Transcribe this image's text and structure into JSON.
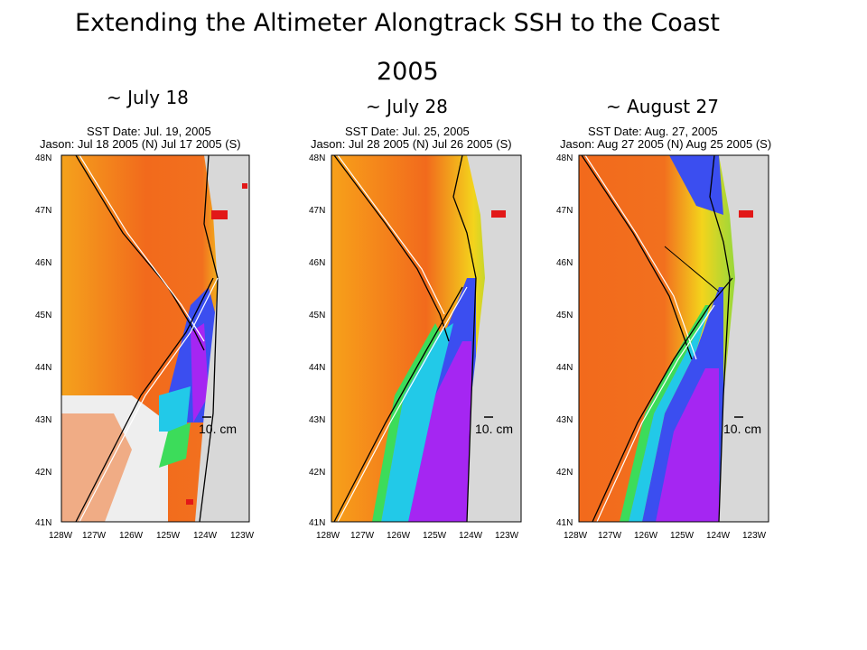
{
  "title": "Extending the Altimeter Alongtrack SSH to the Coast",
  "year": "2005",
  "panels": [
    {
      "label": "~ July 18",
      "sst_date": "SST Date: Jul. 19, 2005",
      "jason": "Jason: Jul 18 2005 (N) Jul 17 2005 (S)",
      "scale_label": "10. cm"
    },
    {
      "label": "~ July 28",
      "sst_date": "SST Date: Jul. 25, 2005",
      "jason": "Jason: Jul 28 2005 (N) Jul 26 2005 (S)",
      "scale_label": "10. cm"
    },
    {
      "label": "~ August 27",
      "sst_date": "SST Date: Aug. 27, 2005",
      "jason": "Jason: Aug 27 2005 (N) Aug 25 2005 (S)",
      "scale_label": "10. cm"
    }
  ],
  "lat_ticks": [
    "48N",
    "47N",
    "46N",
    "45N",
    "44N",
    "43N",
    "42N",
    "41N"
  ],
  "lon_ticks": [
    "128W",
    "127W",
    "126W",
    "125W",
    "124W",
    "123W"
  ],
  "colors": {
    "warm": "#f26a1c",
    "warm_light": "#f7a11a",
    "yellow": "#f3e21a",
    "green": "#3cdc5a",
    "cyan": "#22c9e8",
    "blue": "#3b4ef0",
    "purple": "#a526f2",
    "land": "#d8d8d8",
    "red_patch": "#e21818"
  }
}
